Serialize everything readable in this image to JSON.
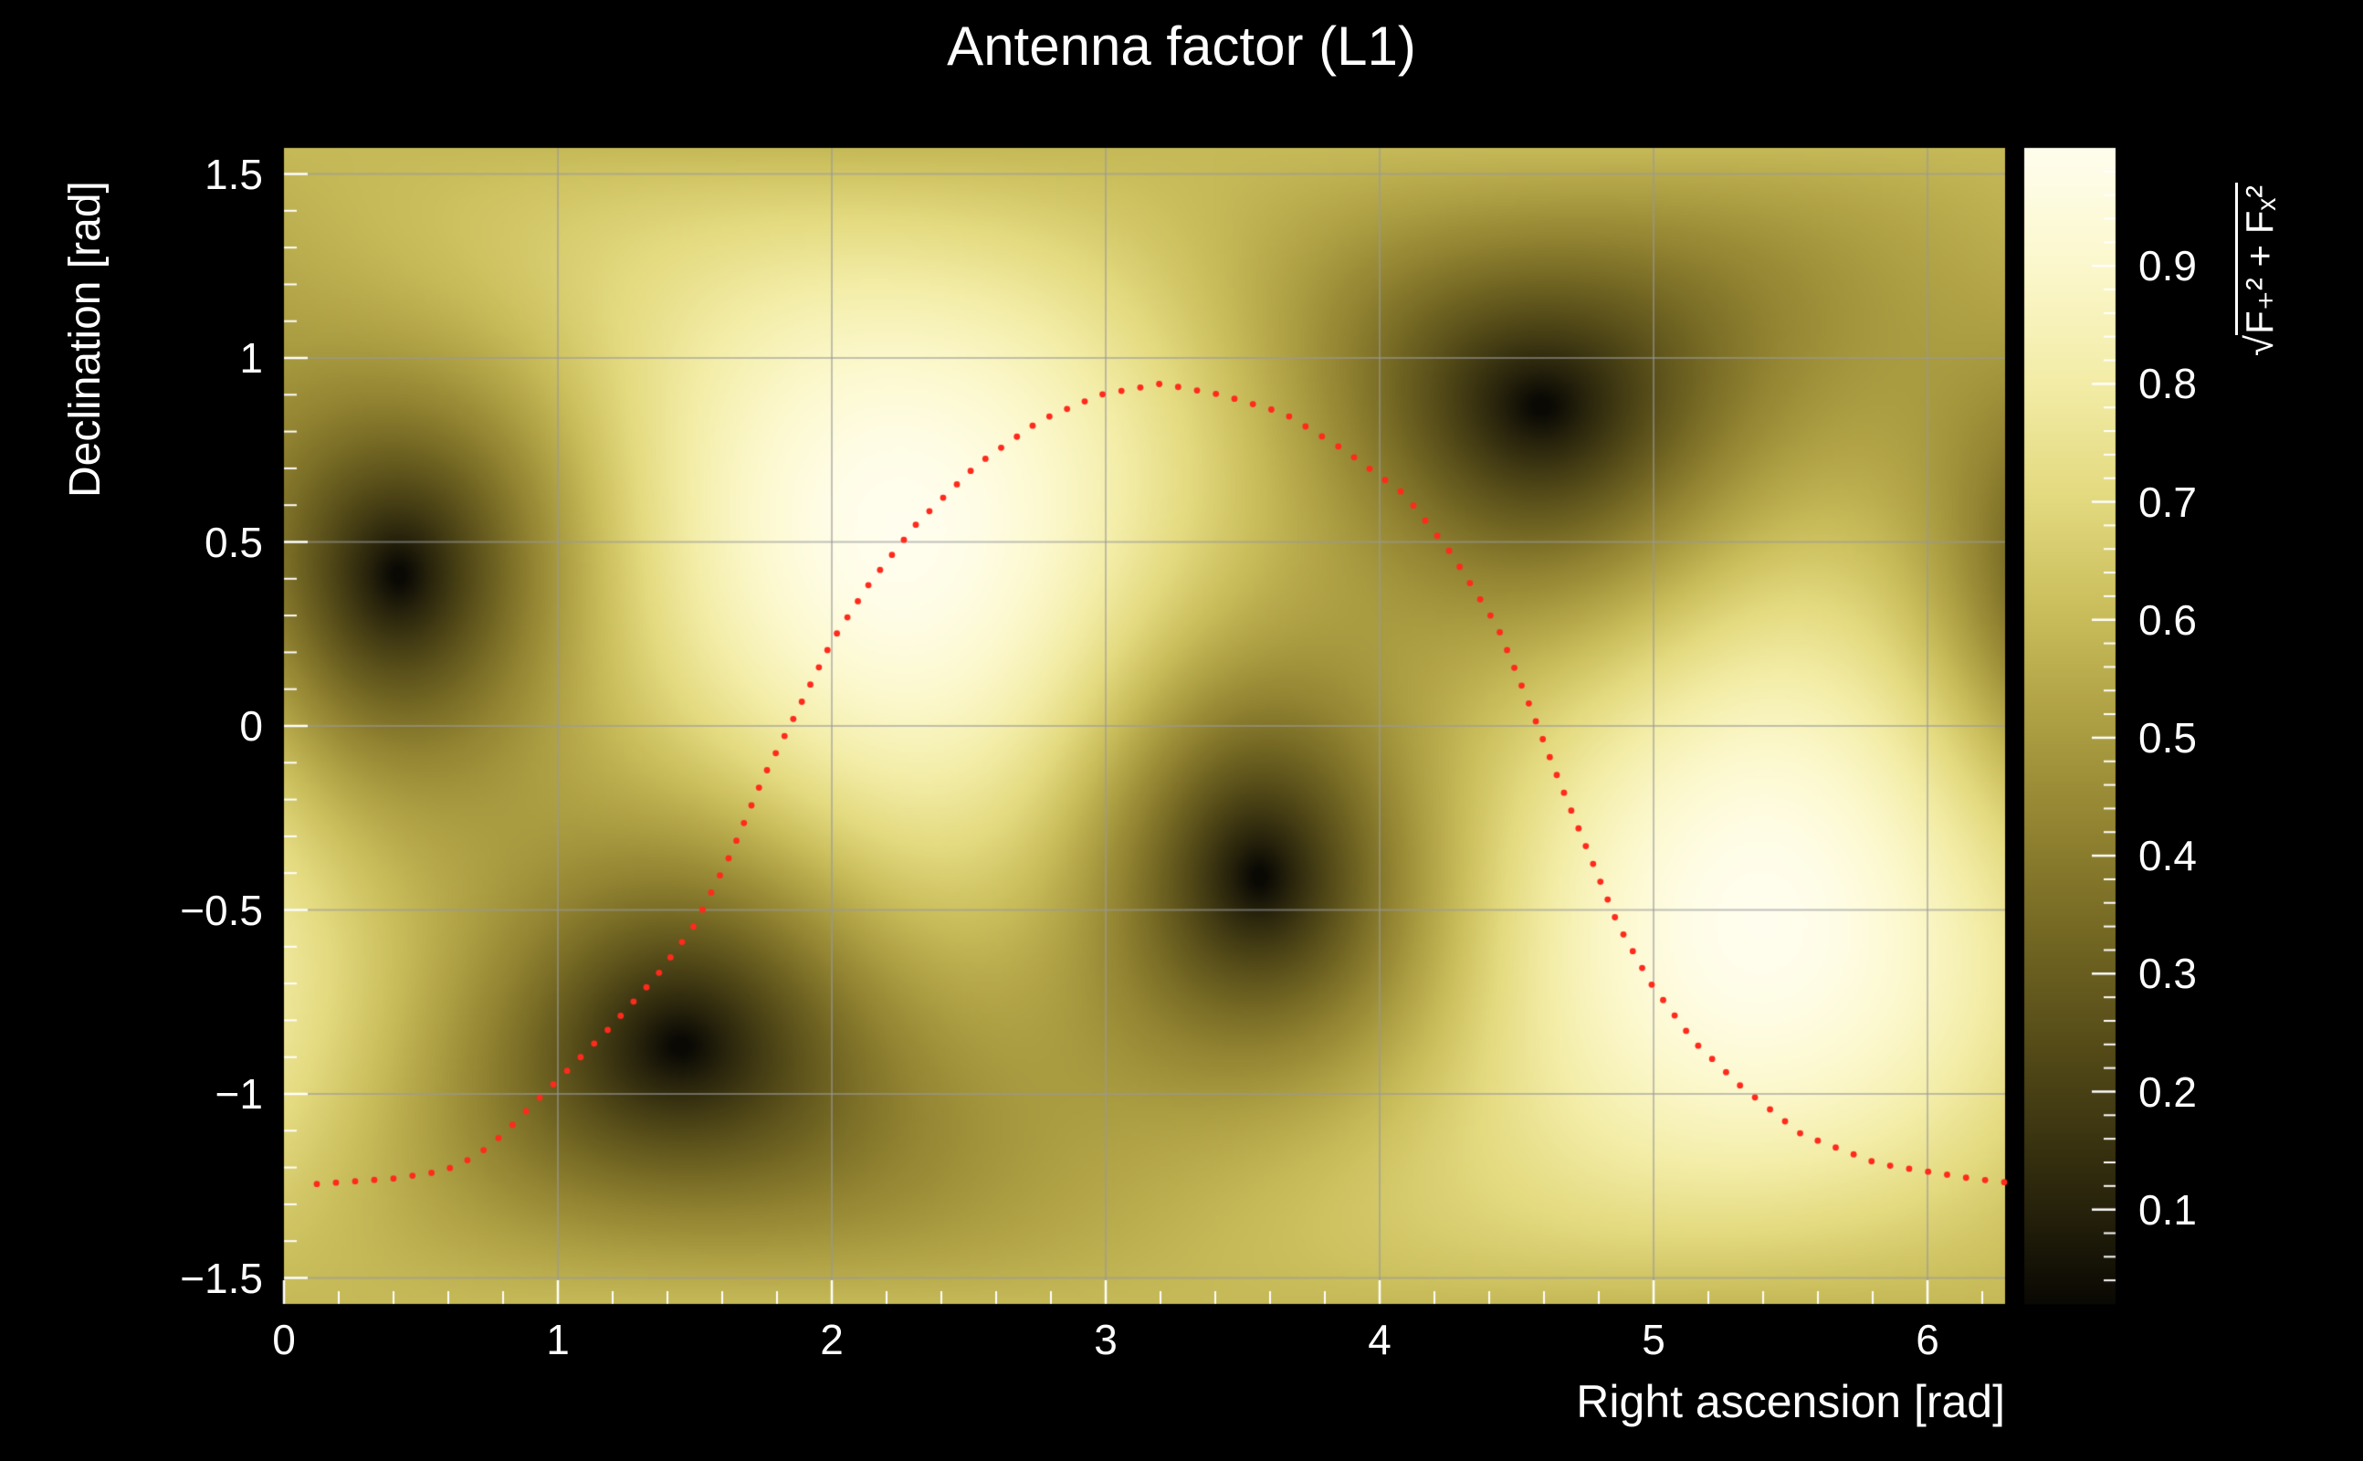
{
  "title": "Antenna factor (L1)",
  "colors": {
    "background": "#000000",
    "text": "#ffffff",
    "grid": "#9a9a9a",
    "tick": "#ffffff",
    "track": "#ff2a1c"
  },
  "chart_data": {
    "type": "heatmap",
    "title": "Antenna factor (L1)",
    "xlabel": "Right ascension [rad]",
    "ylabel": "Declination [rad]",
    "zlabel_radical": "√",
    "zlabel_radicand": "F₊² + Fₓ²",
    "x_range": [
      0,
      6.283185
    ],
    "y_range": [
      -1.570796,
      1.570796
    ],
    "z_range": [
      0.02,
      1.0
    ],
    "x_ticks": [
      "0",
      "1",
      "2",
      "3",
      "4",
      "5",
      "6"
    ],
    "x_tick_values": [
      0,
      1,
      2,
      3,
      4,
      5,
      6
    ],
    "y_ticks": [
      "1.5",
      "1",
      "0.5",
      "0",
      "−0.5",
      "−1",
      "−1.5"
    ],
    "y_tick_values": [
      1.5,
      1,
      0.5,
      0,
      -0.5,
      -1,
      -1.5
    ],
    "colorbar_ticks": [
      "0.9",
      "0.8",
      "0.7",
      "0.6",
      "0.5",
      "0.4",
      "0.3",
      "0.2",
      "0.1"
    ],
    "colorbar_tick_values": [
      0.9,
      0.8,
      0.7,
      0.6,
      0.5,
      0.4,
      0.3,
      0.2,
      0.1
    ],
    "grid": true,
    "nulls": [
      [
        0.42,
        0.41
      ],
      [
        1.43,
        -0.86
      ],
      [
        3.56,
        -0.41
      ],
      [
        4.57,
        0.86
      ]
    ],
    "maxima": [
      [
        2.22,
        0.55
      ],
      [
        5.36,
        -0.55
      ]
    ],
    "colormap": {
      "positions": [
        0,
        0.1,
        0.2,
        0.3,
        0.4,
        0.5,
        0.6,
        0.7,
        0.8,
        0.9,
        1
      ],
      "colors": [
        "#0a0904",
        "#2d280d",
        "#4e4516",
        "#6e6221",
        "#8e802f",
        "#ac9e42",
        "#cabe5c",
        "#e4da80",
        "#f3eda8",
        "#fcf8cd",
        "#fffeee"
      ]
    },
    "track": {
      "color": "#ff2a1c",
      "n_points": 130,
      "points": [
        [
          0.12,
          -1.245
        ],
        [
          0.21,
          -1.24
        ],
        [
          0.4,
          -1.23
        ],
        [
          0.58,
          -1.21
        ],
        [
          0.7,
          -1.17
        ],
        [
          0.8,
          -1.11
        ],
        [
          0.92,
          -1.02
        ],
        [
          1.03,
          -0.94
        ],
        [
          1.19,
          -0.82
        ],
        [
          1.36,
          -0.68
        ],
        [
          1.5,
          -0.54
        ],
        [
          1.63,
          -0.35
        ],
        [
          1.75,
          -0.14
        ],
        [
          1.86,
          0.02
        ],
        [
          2.0,
          0.23
        ],
        [
          2.14,
          0.39
        ],
        [
          2.31,
          0.55
        ],
        [
          2.53,
          0.71
        ],
        [
          2.76,
          0.83
        ],
        [
          2.98,
          0.9
        ],
        [
          3.2,
          0.93
        ],
        [
          3.42,
          0.9
        ],
        [
          3.65,
          0.85
        ],
        [
          3.87,
          0.75
        ],
        [
          4.09,
          0.63
        ],
        [
          4.26,
          0.47
        ],
        [
          4.43,
          0.27
        ],
        [
          4.54,
          0.07
        ],
        [
          4.65,
          -0.14
        ],
        [
          4.76,
          -0.34
        ],
        [
          4.87,
          -0.54
        ],
        [
          4.99,
          -0.7
        ],
        [
          5.15,
          -0.86
        ],
        [
          5.32,
          -0.98
        ],
        [
          5.54,
          -1.11
        ],
        [
          5.82,
          -1.19
        ],
        [
          6.16,
          -1.23
        ],
        [
          6.28,
          -1.24
        ]
      ]
    }
  }
}
